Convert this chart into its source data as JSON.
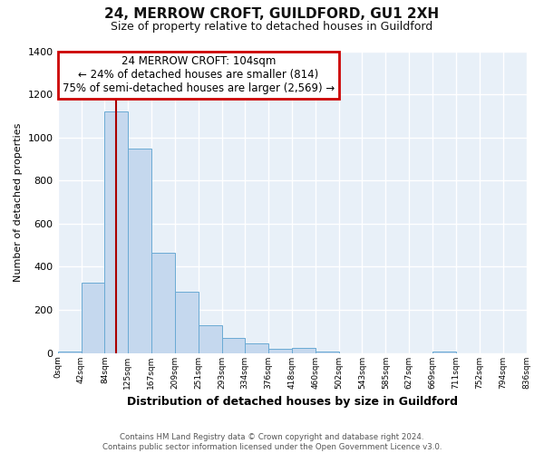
{
  "title": "24, MERROW CROFT, GUILDFORD, GU1 2XH",
  "subtitle": "Size of property relative to detached houses in Guildford",
  "xlabel": "Distribution of detached houses by size in Guildford",
  "ylabel": "Number of detached properties",
  "bar_color": "#c5d8ee",
  "bar_edge_color": "#6aaad4",
  "plot_bg_color": "#e8f0f8",
  "fig_bg_color": "#ffffff",
  "grid_color": "#ffffff",
  "bin_edges": [
    0,
    42,
    84,
    125,
    167,
    209,
    251,
    293,
    334,
    376,
    418,
    460,
    502,
    543,
    585,
    627,
    669,
    711,
    752,
    794,
    836
  ],
  "bin_labels": [
    "0sqm",
    "42sqm",
    "84sqm",
    "125sqm",
    "167sqm",
    "209sqm",
    "251sqm",
    "293sqm",
    "334sqm",
    "376sqm",
    "418sqm",
    "460sqm",
    "502sqm",
    "543sqm",
    "585sqm",
    "627sqm",
    "669sqm",
    "711sqm",
    "752sqm",
    "794sqm",
    "836sqm"
  ],
  "counts": [
    5,
    325,
    1120,
    950,
    465,
    285,
    130,
    70,
    45,
    20,
    25,
    5,
    0,
    0,
    0,
    0,
    5,
    0,
    0,
    0
  ],
  "red_line_x": 104,
  "annotation_line0": "24 MERROW CROFT: 104sqm",
  "annotation_line1": "← 24% of detached houses are smaller (814)",
  "annotation_line2": "75% of semi-detached houses are larger (2,569) →",
  "annotation_box_color": "#ffffff",
  "annotation_box_edge_color": "#cc0000",
  "ylim": [
    0,
    1400
  ],
  "yticks": [
    0,
    200,
    400,
    600,
    800,
    1000,
    1200,
    1400
  ],
  "footer_line1": "Contains HM Land Registry data © Crown copyright and database right 2024.",
  "footer_line2": "Contains public sector information licensed under the Open Government Licence v3.0."
}
